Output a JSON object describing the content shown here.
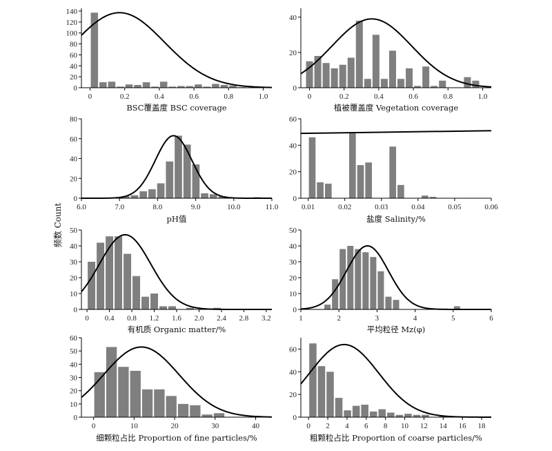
{
  "ylabel": "频数 Count",
  "chart_data": [
    {
      "type": "bar",
      "xlabel": "BSC覆盖度 BSC coverage",
      "xlim": [
        -0.05,
        1.05
      ],
      "ylim": [
        0,
        145
      ],
      "xticks": [
        0,
        0.2,
        0.4,
        0.6,
        0.8,
        1.0
      ],
      "xtick_labels": [
        "0",
        "0.2",
        "0.4",
        "0.6",
        "0.8",
        "1.0"
      ],
      "yticks": [
        0,
        20,
        40,
        60,
        80,
        100,
        120,
        140
      ],
      "bin_width": 0.05,
      "bins": [
        0,
        0.05,
        0.1,
        0.15,
        0.2,
        0.25,
        0.3,
        0.35,
        0.4,
        0.45,
        0.5,
        0.55,
        0.6,
        0.65,
        0.7,
        0.75,
        0.8,
        0.85
      ],
      "values": [
        137,
        10,
        11,
        2,
        6,
        5,
        10,
        2,
        11,
        2,
        3,
        3,
        6,
        2,
        7,
        5,
        4,
        1
      ],
      "curve": {
        "mean": 0.17,
        "sd": 0.26,
        "peak": 137
      }
    },
    {
      "type": "bar",
      "xlabel": "植被覆盖度 Vegetation coverage",
      "xlim": [
        -0.05,
        1.05
      ],
      "ylim": [
        0,
        45
      ],
      "xticks": [
        0,
        0.2,
        0.4,
        0.6,
        0.8,
        1.0
      ],
      "xtick_labels": [
        "0",
        "0.2",
        "0.4",
        "0.6",
        "0.8",
        "1.0"
      ],
      "yticks": [
        0,
        20,
        40
      ],
      "bin_width": 0.048,
      "bins": [
        -0.024,
        0.024,
        0.072,
        0.12,
        0.168,
        0.216,
        0.264,
        0.312,
        0.36,
        0.408,
        0.456,
        0.504,
        0.552,
        0.6,
        0.648,
        0.696,
        0.744,
        0.792,
        0.84,
        0.888,
        0.936,
        0.984
      ],
      "values": [
        15,
        18,
        14,
        11,
        13,
        17,
        38,
        5,
        30,
        5,
        21,
        5,
        11,
        1,
        12,
        1,
        4,
        0,
        0,
        6,
        4,
        0
      ],
      "curve": {
        "mean": 0.36,
        "sd": 0.23,
        "peak": 39
      }
    },
    {
      "type": "bar",
      "xlabel": "pH值",
      "xlim": [
        6.0,
        11.0
      ],
      "ylim": [
        0,
        80
      ],
      "xticks": [
        6.0,
        7.0,
        8.0,
        9.0,
        10.0,
        11.0
      ],
      "xtick_labels": [
        "6.0",
        "7.0",
        "8.0",
        "9.0",
        "10.0",
        "11.0"
      ],
      "yticks": [
        0,
        20,
        40,
        60,
        80
      ],
      "bin_width": 0.23,
      "bins": [
        7.05,
        7.28,
        7.51,
        7.74,
        7.97,
        8.2,
        8.43,
        8.66,
        8.89,
        9.12,
        9.35,
        9.58,
        9.81,
        10.04,
        10.27,
        10.5,
        10.73
      ],
      "values": [
        2,
        3,
        7,
        9,
        15,
        37,
        63,
        54,
        34,
        5,
        4,
        2,
        1,
        0,
        0,
        1,
        0
      ],
      "curve": {
        "mean": 8.42,
        "sd": 0.48,
        "peak": 63
      }
    },
    {
      "type": "bar",
      "xlabel": "盐度 Salinity/%",
      "xlim": [
        0.008,
        0.06
      ],
      "ylim": [
        0,
        60
      ],
      "xticks": [
        0.01,
        0.02,
        0.03,
        0.04,
        0.05,
        0.06
      ],
      "xtick_labels": [
        "0.01",
        "0.02",
        "0.03",
        "0.04",
        "0.05",
        "0.06"
      ],
      "yticks": [
        0,
        20,
        40,
        60
      ],
      "bin_width": 0.0022,
      "bins": [
        0.01,
        0.0122,
        0.0144,
        0.0166,
        0.0188,
        0.021,
        0.0232,
        0.0254,
        0.0276,
        0.0298,
        0.032,
        0.0342,
        0.0364,
        0.0386,
        0.0408,
        0.043,
        0.0452,
        0.0474,
        0.0496,
        0.0518,
        0.054,
        0.0562
      ],
      "values": [
        46,
        12,
        11,
        0,
        0,
        49,
        25,
        27,
        0,
        0,
        39,
        10,
        0,
        0,
        2,
        1,
        0,
        0,
        0,
        0,
        0,
        0
      ],
      "line": {
        "y_start": 49,
        "y_end": 51
      }
    },
    {
      "type": "bar",
      "xlabel": "有机质 Organic matter/%",
      "xlim": [
        -0.1,
        3.3
      ],
      "ylim": [
        0,
        50
      ],
      "xticks": [
        0,
        0.4,
        0.8,
        1.2,
        1.6,
        2.0,
        2.4,
        2.8,
        3.2
      ],
      "xtick_labels": [
        "0",
        "0.4",
        "0.8",
        "1.2",
        "1.6",
        "2.0",
        "2.4",
        "2.8",
        "3.2"
      ],
      "yticks": [
        0,
        10,
        20,
        30,
        40,
        50
      ],
      "bin_width": 0.16,
      "bins": [
        0,
        0.16,
        0.32,
        0.48,
        0.64,
        0.8,
        0.96,
        1.12,
        1.28,
        1.44,
        1.6,
        1.76,
        1.92,
        2.08,
        2.24,
        2.4
      ],
      "values": [
        30,
        42,
        46,
        46,
        35,
        21,
        8,
        10,
        2,
        2,
        0,
        1,
        0,
        0,
        1,
        0
      ],
      "curve": {
        "mean": 0.68,
        "sd": 0.46,
        "peak": 47
      }
    },
    {
      "type": "bar",
      "xlabel": "平均粒径 Mz(φ)",
      "xlim": [
        1,
        6
      ],
      "ylim": [
        0,
        50
      ],
      "xticks": [
        1,
        2,
        3,
        4,
        5,
        6
      ],
      "xtick_labels": [
        "1",
        "2",
        "3",
        "4",
        "5",
        "6"
      ],
      "yticks": [
        0,
        10,
        20,
        30,
        40,
        50
      ],
      "bin_width": 0.2,
      "bins": [
        1.6,
        1.8,
        2.0,
        2.2,
        2.4,
        2.6,
        2.8,
        3.0,
        3.2,
        3.4,
        3.6,
        3.8,
        4.0,
        4.2,
        4.4,
        4.6,
        4.8,
        5.0
      ],
      "values": [
        3,
        19,
        38,
        40,
        38,
        36,
        33,
        24,
        8,
        6,
        0,
        0,
        0,
        0,
        0,
        0,
        0,
        2
      ],
      "curve": {
        "mean": 2.75,
        "sd": 0.55,
        "peak": 40
      }
    },
    {
      "type": "bar",
      "xlabel": "细颗粒占比 Proportion of fine particles/%",
      "xlim": [
        -3,
        44
      ],
      "ylim": [
        0,
        60
      ],
      "xticks": [
        0,
        10,
        20,
        30,
        40
      ],
      "xtick_labels": [
        "0",
        "10",
        "20",
        "30",
        "40"
      ],
      "yticks": [
        0,
        10,
        20,
        30,
        40,
        50,
        60
      ],
      "bin_width": 2.95,
      "bins": [
        0,
        2.95,
        5.9,
        8.85,
        11.8,
        14.75,
        17.7,
        20.65,
        23.6,
        26.55,
        29.5,
        32.45,
        35.4,
        38.35
      ],
      "values": [
        34,
        53,
        38,
        35,
        21,
        21,
        16,
        10,
        9,
        2,
        3,
        0,
        0,
        1
      ],
      "curve": {
        "mean": 11.8,
        "sd": 9.3,
        "peak": 53
      }
    },
    {
      "type": "bar",
      "xlabel": "粗颗粒占比 Proportion of coarse particles/%",
      "xlim": [
        -0.8,
        19
      ],
      "ylim": [
        0,
        70
      ],
      "xticks": [
        0,
        2,
        4,
        6,
        8,
        10,
        12,
        14,
        16,
        18
      ],
      "xtick_labels": [
        "0",
        "2",
        "4",
        "6",
        "8",
        "10",
        "12",
        "14",
        "16",
        "18"
      ],
      "yticks": [
        0,
        20,
        40,
        60
      ],
      "bin_width": 0.9,
      "bins": [
        0,
        0.9,
        1.8,
        2.7,
        3.6,
        4.5,
        5.4,
        6.3,
        7.2,
        8.1,
        9.0,
        9.9,
        10.8,
        11.7,
        12.6,
        13.5
      ],
      "values": [
        65,
        45,
        40,
        17,
        6,
        10,
        11,
        5,
        7,
        4,
        2,
        3,
        2,
        2,
        0,
        1
      ],
      "curve": {
        "mean": 3.7,
        "sd": 3.6,
        "peak": 64
      }
    }
  ]
}
